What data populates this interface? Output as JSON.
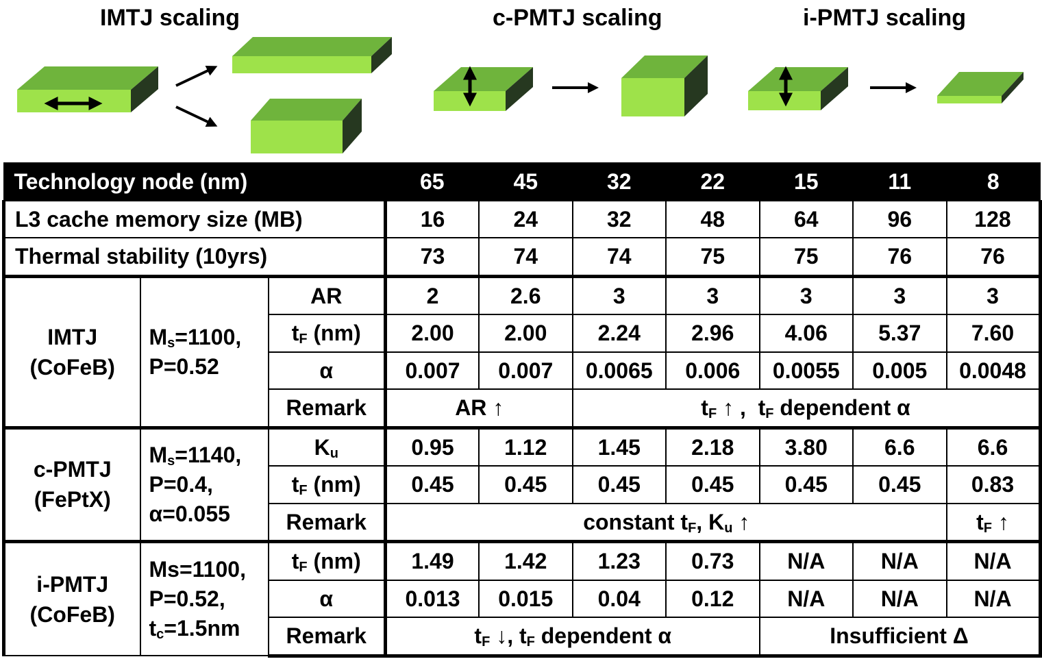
{
  "illustration": {
    "headings": {
      "imtj": "IMTJ scaling",
      "cpmtj": "c-PMTJ scaling",
      "ipmtj": "i-PMTJ scaling"
    },
    "colors": {
      "front": "#9ee24a",
      "top": "#6fb43c",
      "side": "#263820",
      "arrow": "#000000"
    },
    "icons": [
      "in-plane-magnetization-arrow-icon",
      "perpendicular-magnetization-arrow-icon",
      "scaling-arrow-icon"
    ]
  },
  "table": {
    "header": {
      "label": "Technology node (nm)",
      "values": [
        "65",
        "45",
        "32",
        "22",
        "15",
        "11",
        "8"
      ]
    },
    "cache": {
      "label": "L3 cache memory size (MB)",
      "values": [
        "16",
        "24",
        "32",
        "48",
        "64",
        "96",
        "128"
      ]
    },
    "thermal": {
      "label": "Thermal stability (10yrs)",
      "values": [
        "73",
        "74",
        "74",
        "75",
        "75",
        "76",
        "76"
      ]
    },
    "imtj": {
      "name": "IMTJ",
      "material": "(CoFeB)",
      "param1": "M",
      "param1_sub": "s",
      "param1_val": "=1100,",
      "param2": "P=0.52",
      "ar_label": "AR",
      "ar_values": [
        "2",
        "2.6",
        "3",
        "3",
        "3",
        "3",
        "3"
      ],
      "tf_label": "t",
      "tf_sub": "F",
      "tf_unit": " (nm)",
      "tf_values": [
        "2.00",
        "2.00",
        "2.24",
        "2.96",
        "4.06",
        "5.37",
        "7.60"
      ],
      "alpha_label": "α",
      "alpha_values": [
        "0.007",
        "0.007",
        "0.0065",
        "0.006",
        "0.0055",
        "0.005",
        "0.0048"
      ],
      "remark_label": "Remark",
      "remark1": "AR ↑",
      "remark2_t1": "t",
      "remark2_s1": "F",
      "remark2_mid": " ↑ ,  t",
      "remark2_s2": "F",
      "remark2_end": " dependent α"
    },
    "cpmtj": {
      "name": "c-PMTJ",
      "material": "(FePtX)",
      "param1": "M",
      "param1_sub": "s",
      "param1_val": "=1140,",
      "param2": "P=0.4,",
      "param3": "α=0.055",
      "ku_label": "K",
      "ku_sub": "u",
      "ku_values": [
        "0.95",
        "1.12",
        "1.45",
        "2.18",
        "3.80",
        "6.6",
        "6.6"
      ],
      "tf_label": "t",
      "tf_sub": "F",
      "tf_unit": " (nm)",
      "tf_values": [
        "0.45",
        "0.45",
        "0.45",
        "0.45",
        "0.45",
        "0.45",
        "0.83"
      ],
      "remark_label": "Remark",
      "remark1_t": "constant t",
      "remark1_s1": "F",
      "remark1_mid": ", K",
      "remark1_s2": "u",
      "remark1_end": " ↑",
      "remark2_t": "t",
      "remark2_s": "F",
      "remark2_end": " ↑"
    },
    "ipmtj": {
      "name": "i-PMTJ",
      "material": "(CoFeB)",
      "param1": "Ms=1100,",
      "param2": "P=0.52,",
      "param3_t": "t",
      "param3_sub": "c",
      "param3_end": "=1.5nm",
      "tf_label": "t",
      "tf_sub": "F",
      "tf_unit": " (nm)",
      "tf_values": [
        "1.49",
        "1.42",
        "1.23",
        "0.73",
        "N/A",
        "N/A",
        "N/A"
      ],
      "alpha_label": "α",
      "alpha_values": [
        "0.013",
        "0.015",
        "0.04",
        "0.12",
        "N/A",
        "N/A",
        "N/A"
      ],
      "remark_label": "Remark",
      "remark1_t": "t",
      "remark1_s1": "F",
      "remark1_mid": " ↓, t",
      "remark1_s2": "F",
      "remark1_end": " dependent α",
      "remark2": "Insufficient Δ"
    }
  }
}
